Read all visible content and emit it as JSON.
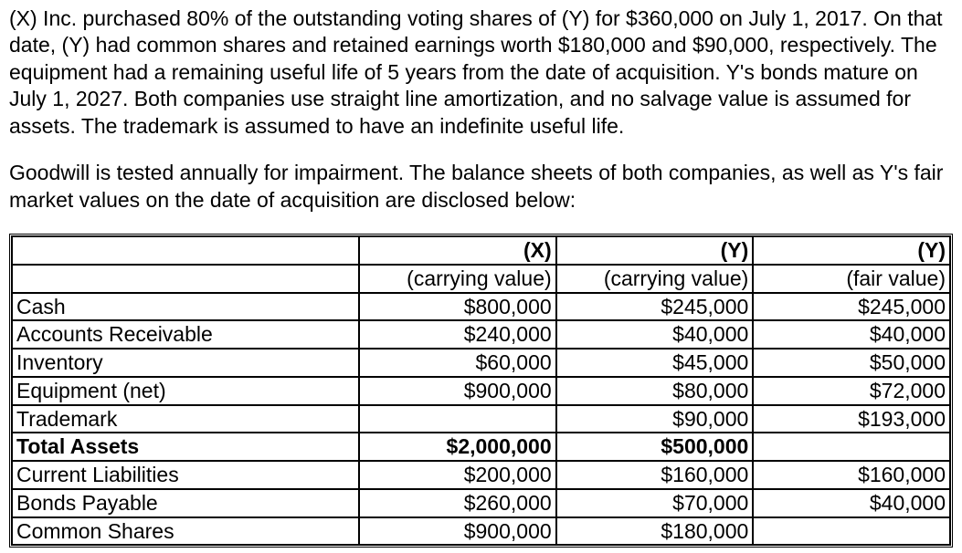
{
  "paragraphs": {
    "p1": "(X) Inc. purchased 80% of the outstanding voting shares of (Y) for $360,000 on July 1, 2017. On that date, (Y) had common shares and retained earnings worth $180,000 and $90,000, respectively. The equipment had a remaining useful life of 5 years from the date of acquisition. Y's bonds mature on July 1, 2027. Both companies use straight line amortization, and no salvage value is assumed for assets. The trademark is assumed to have an indefinite useful life.",
    "p2": "Goodwill is tested annually for impairment. The balance sheets of both companies, as well as Y's fair market values on the date of acquisition are disclosed below:"
  },
  "table": {
    "header1": {
      "col1": "(X)",
      "col2": "(Y)",
      "col3": "(Y)"
    },
    "header2": {
      "col1": "(carrying value)",
      "col2": "(carrying value)",
      "col3": "(fair value)"
    },
    "rows": [
      {
        "label": "Cash",
        "c1": "$800,000",
        "c2": "$245,000",
        "c3": "$245,000",
        "bold": false
      },
      {
        "label": "Accounts Receivable",
        "c1": "$240,000",
        "c2": "$40,000",
        "c3": "$40,000",
        "bold": false
      },
      {
        "label": "Inventory",
        "c1": "$60,000",
        "c2": "$45,000",
        "c3": "$50,000",
        "bold": false
      },
      {
        "label": "Equipment (net)",
        "c1": "$900,000",
        "c2": "$80,000",
        "c3": "$72,000",
        "bold": false
      },
      {
        "label": "Trademark",
        "c1": "",
        "c2": "$90,000",
        "c3": "$193,000",
        "bold": false
      },
      {
        "label": "Total Assets",
        "c1": "$2,000,000",
        "c2": "$500,000",
        "c3": "",
        "bold": true
      },
      {
        "label": "Current Liabilities",
        "c1": "$200,000",
        "c2": "$160,000",
        "c3": "$160,000",
        "bold": false
      },
      {
        "label": "Bonds Payable",
        "c1": "$260,000",
        "c2": "$70,000",
        "c3": "$40,000",
        "bold": false
      },
      {
        "label": "Common Shares",
        "c1": "$900,000",
        "c2": "$180,000",
        "c3": "",
        "bold": false
      }
    ]
  },
  "style": {
    "background_color": "#ffffff",
    "text_color": "#000000",
    "border_color": "#000000",
    "font_family": "Arial",
    "body_fontsize": 23,
    "table_fontsize": 23,
    "column_widths_percent": [
      37,
      21,
      21,
      21
    ],
    "outer_border": "double",
    "inner_border": "solid"
  }
}
